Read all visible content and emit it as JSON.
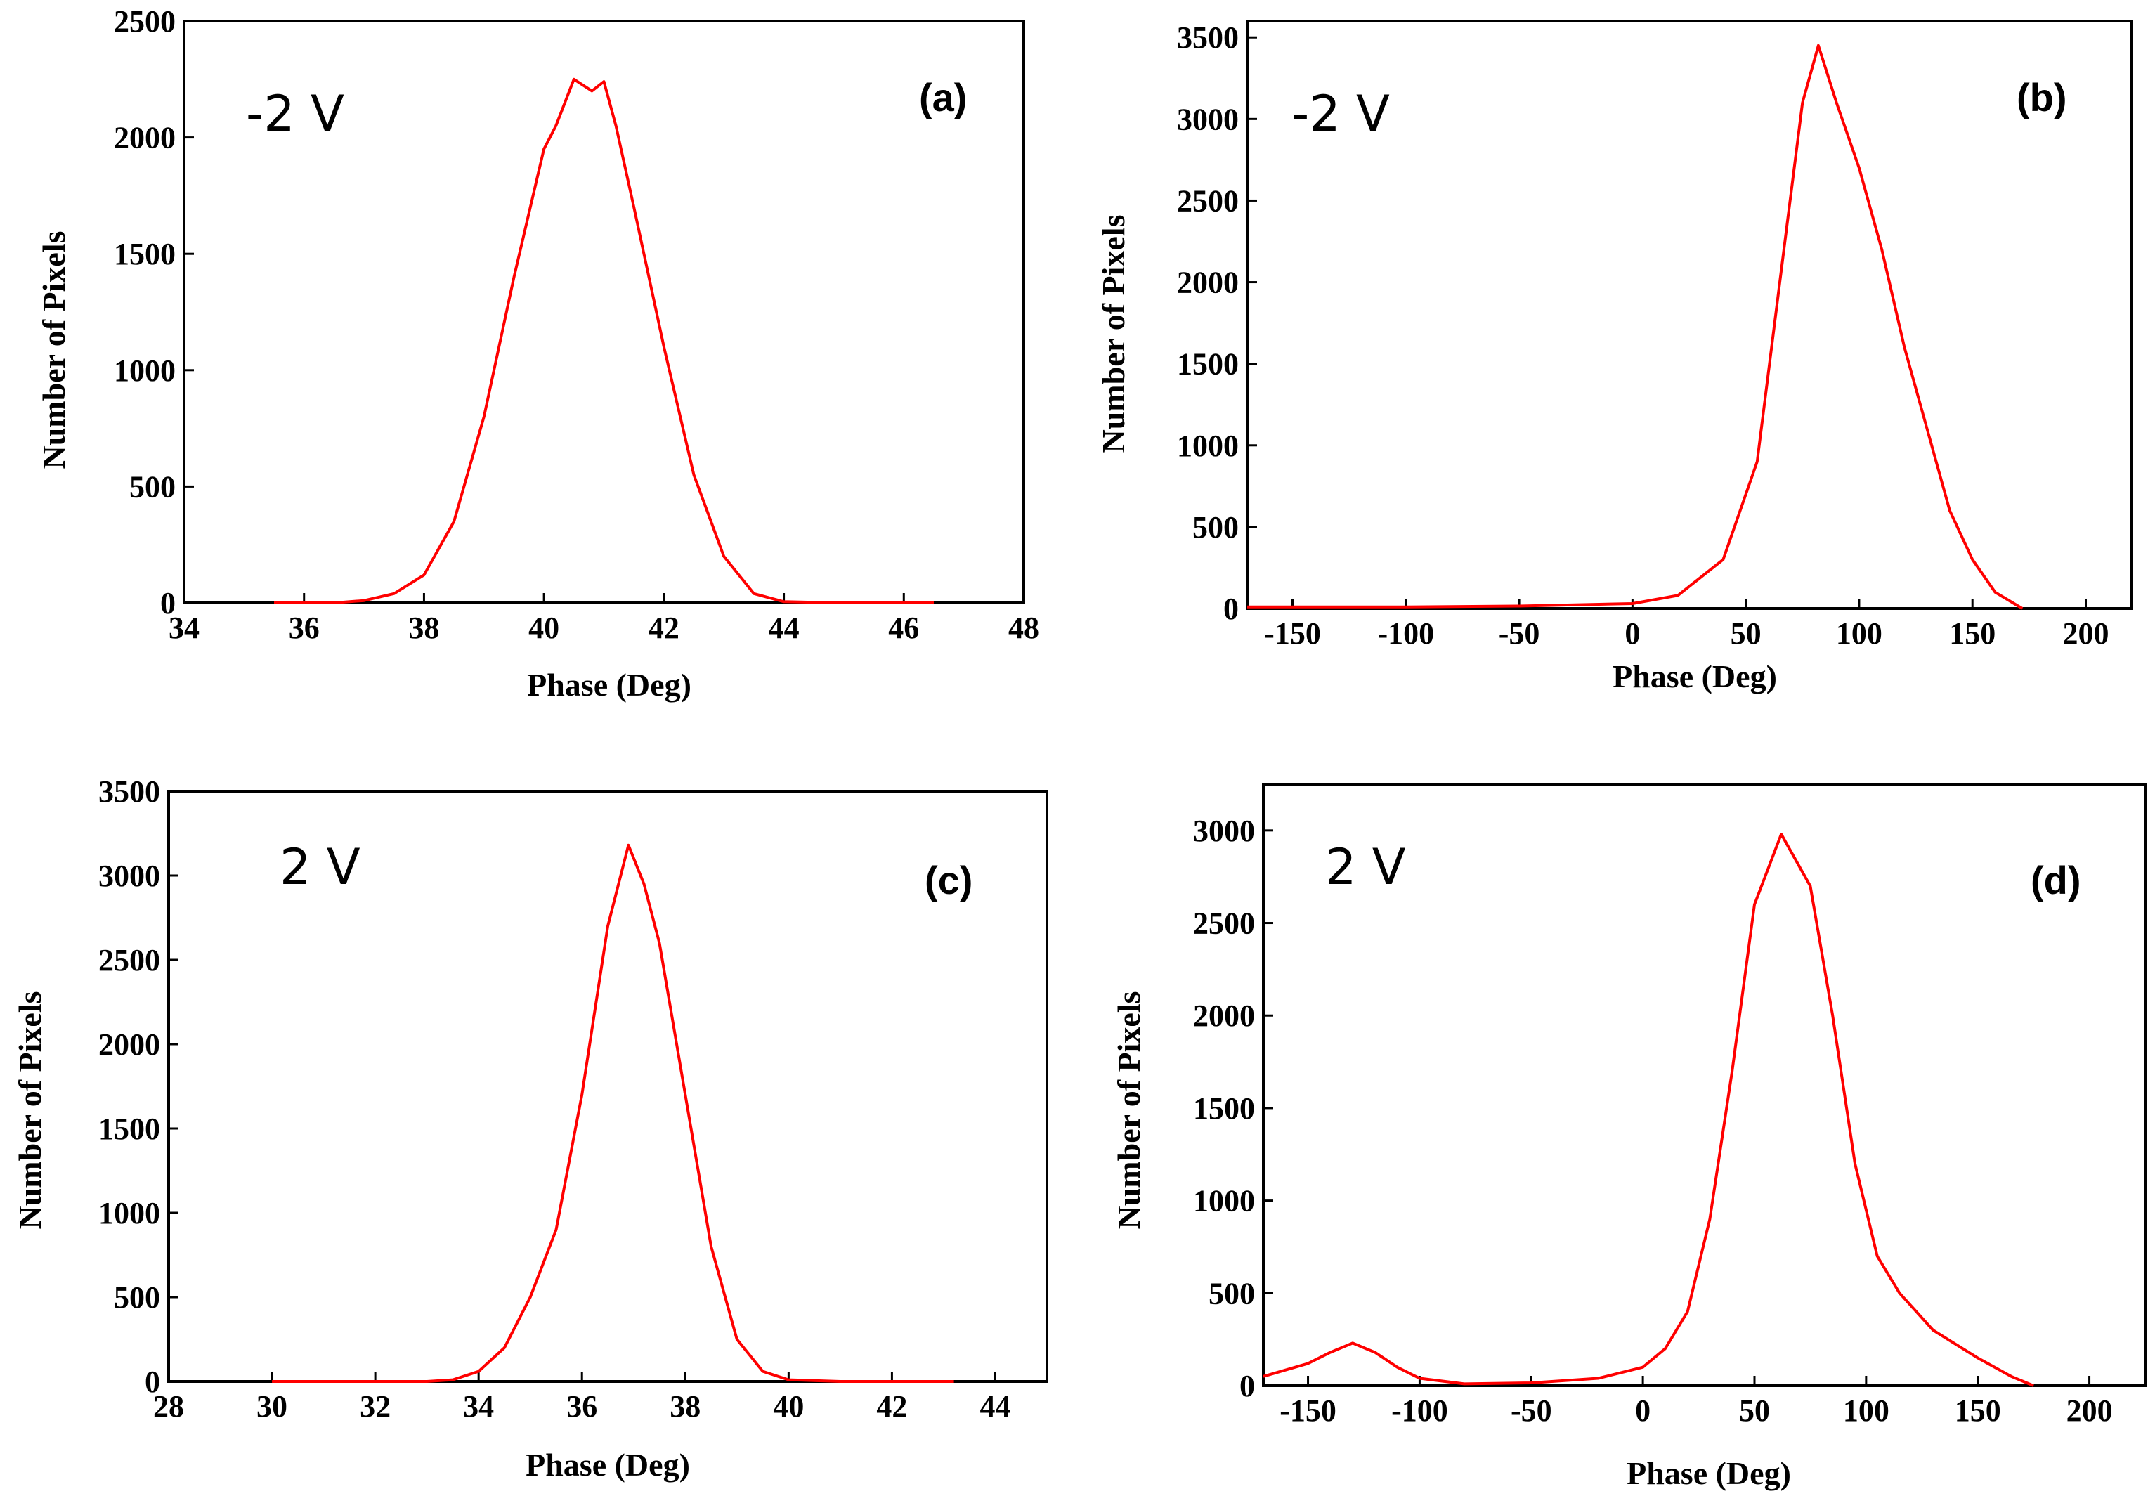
{
  "line_color": "#ff0000",
  "chart_data": [
    {
      "id": "a",
      "type": "line",
      "panel_label": "(a)",
      "annotation": "-2 V",
      "xlabel": "Phase (Deg)",
      "ylabel": "Number of Pixels",
      "xlim": [
        34,
        48
      ],
      "ylim": [
        0,
        2500
      ],
      "xticks": [
        34,
        36,
        38,
        40,
        42,
        44,
        46,
        48
      ],
      "yticks": [
        0,
        500,
        1000,
        1500,
        2000,
        2500
      ],
      "x": [
        35.5,
        36.5,
        37.0,
        37.5,
        38.0,
        38.5,
        39.0,
        39.5,
        40.0,
        40.2,
        40.5,
        40.8,
        41.0,
        41.2,
        41.5,
        42.0,
        42.5,
        43.0,
        43.5,
        44.0,
        45.0,
        46.5
      ],
      "y": [
        0,
        0,
        10,
        40,
        120,
        350,
        800,
        1400,
        1950,
        2050,
        2250,
        2200,
        2240,
        2050,
        1700,
        1100,
        550,
        200,
        40,
        5,
        0,
        0
      ]
    },
    {
      "id": "b",
      "type": "line",
      "panel_label": "(b)",
      "annotation": "-2 V",
      "xlabel": "Phase (Deg)",
      "ylabel": "Number of Pixels",
      "xlim": [
        -170,
        220
      ],
      "ylim": [
        0,
        3600
      ],
      "xticks": [
        -150,
        -100,
        -50,
        0,
        50,
        100,
        150,
        200
      ],
      "yticks": [
        0,
        500,
        1000,
        1500,
        2000,
        2500,
        3000,
        3500
      ],
      "x": [
        -170,
        -100,
        -50,
        0,
        20,
        40,
        55,
        65,
        75,
        82,
        90,
        100,
        110,
        120,
        130,
        140,
        150,
        160,
        172
      ],
      "y": [
        10,
        10,
        15,
        30,
        80,
        300,
        900,
        2000,
        3100,
        3450,
        3100,
        2700,
        2200,
        1600,
        1100,
        600,
        300,
        100,
        0
      ]
    },
    {
      "id": "c",
      "type": "line",
      "panel_label": "(c)",
      "annotation": "2 V",
      "xlabel": "Phase (Deg)",
      "ylabel": "Number of Pixels",
      "xlim": [
        28,
        45
      ],
      "ylim": [
        0,
        3500
      ],
      "xticks": [
        28,
        30,
        32,
        34,
        36,
        38,
        40,
        42,
        44
      ],
      "yticks": [
        0,
        500,
        1000,
        1500,
        2000,
        2500,
        3000,
        3500
      ],
      "x": [
        30.0,
        33.0,
        33.5,
        34.0,
        34.5,
        35.0,
        35.5,
        36.0,
        36.5,
        36.9,
        37.2,
        37.5,
        38.0,
        38.5,
        39.0,
        39.5,
        40.0,
        41.0,
        43.2
      ],
      "y": [
        0,
        0,
        10,
        60,
        200,
        500,
        900,
        1700,
        2700,
        3180,
        2950,
        2600,
        1700,
        800,
        250,
        60,
        10,
        0,
        0
      ]
    },
    {
      "id": "d",
      "type": "line",
      "panel_label": "(d)",
      "annotation": "2 V",
      "xlabel": "Phase (Deg)",
      "ylabel": "Number of Pixels",
      "xlim": [
        -170,
        225
      ],
      "ylim": [
        0,
        3250
      ],
      "xticks": [
        -150,
        -100,
        -50,
        0,
        50,
        100,
        150,
        200
      ],
      "yticks": [
        0,
        500,
        1000,
        1500,
        2000,
        2500,
        3000
      ],
      "x": [
        -170,
        -150,
        -140,
        -130,
        -120,
        -110,
        -100,
        -80,
        -50,
        -20,
        0,
        10,
        20,
        30,
        40,
        50,
        62,
        75,
        85,
        95,
        105,
        115,
        130,
        150,
        165,
        175
      ],
      "y": [
        50,
        120,
        180,
        230,
        180,
        100,
        40,
        10,
        15,
        40,
        100,
        200,
        400,
        900,
        1700,
        2600,
        2980,
        2700,
        2000,
        1200,
        700,
        500,
        300,
        150,
        50,
        0
      ]
    }
  ]
}
